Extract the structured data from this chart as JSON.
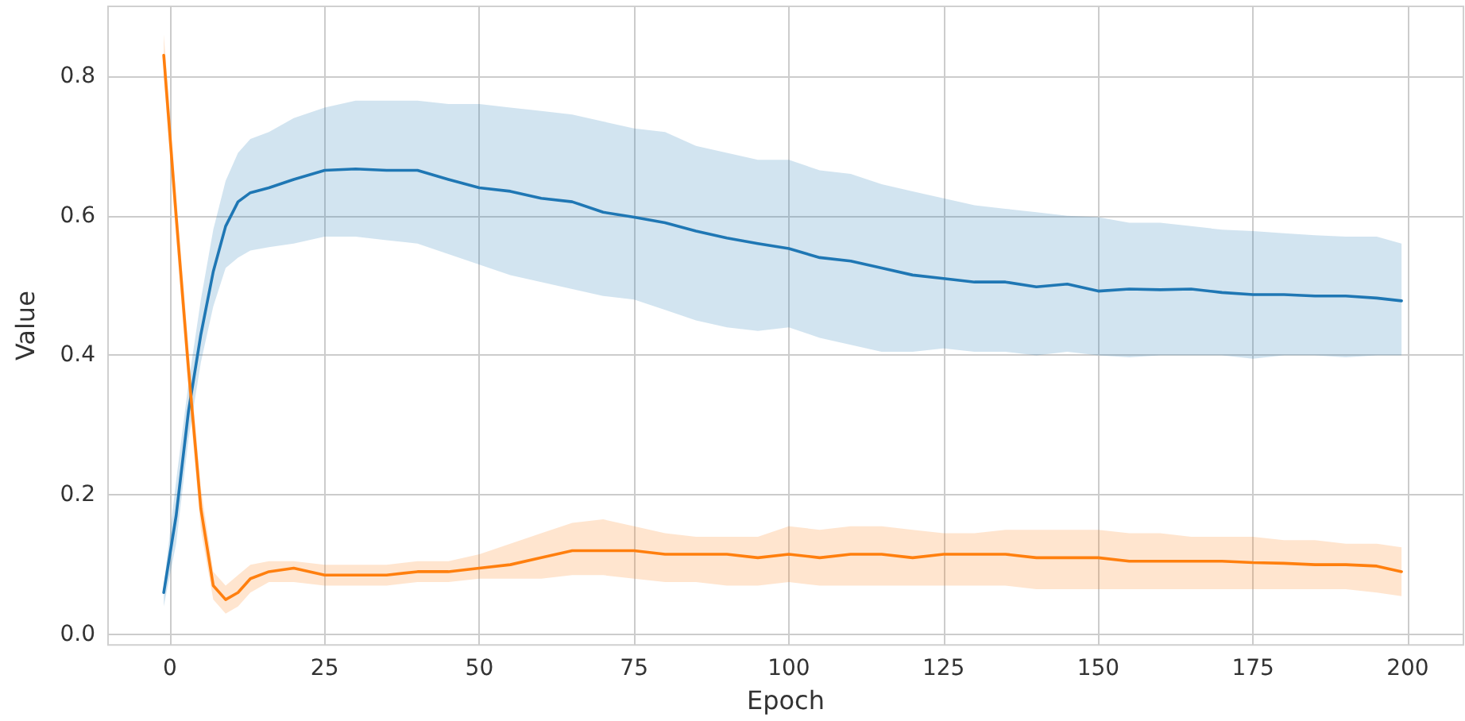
{
  "chart_data": {
    "type": "line",
    "xlabel": "Epoch",
    "ylabel": "Value",
    "x": [
      -1,
      1,
      3,
      5,
      7,
      9,
      11,
      13,
      16,
      20,
      25,
      30,
      35,
      40,
      45,
      50,
      55,
      60,
      65,
      70,
      75,
      80,
      85,
      90,
      95,
      100,
      105,
      110,
      115,
      120,
      125,
      130,
      135,
      140,
      145,
      150,
      155,
      160,
      165,
      170,
      175,
      180,
      185,
      190,
      195,
      199
    ],
    "series": [
      {
        "color": "#1f77b4",
        "values": [
          0.06,
          0.17,
          0.32,
          0.43,
          0.52,
          0.585,
          0.62,
          0.633,
          0.64,
          0.652,
          0.665,
          0.667,
          0.665,
          0.665,
          0.652,
          0.64,
          0.635,
          0.625,
          0.62,
          0.605,
          0.598,
          0.59,
          0.578,
          0.568,
          0.56,
          0.553,
          0.54,
          0.535,
          0.525,
          0.515,
          0.51,
          0.505,
          0.505,
          0.498,
          0.502,
          0.492,
          0.495,
          0.494,
          0.495,
          0.49,
          0.487,
          0.487,
          0.485,
          0.485,
          0.482,
          0.478
        ],
        "upper": [
          0.07,
          0.22,
          0.36,
          0.48,
          0.58,
          0.65,
          0.69,
          0.71,
          0.72,
          0.74,
          0.755,
          0.765,
          0.765,
          0.765,
          0.76,
          0.76,
          0.755,
          0.75,
          0.745,
          0.735,
          0.725,
          0.72,
          0.7,
          0.69,
          0.68,
          0.68,
          0.665,
          0.66,
          0.645,
          0.635,
          0.625,
          0.615,
          0.61,
          0.605,
          0.6,
          0.598,
          0.59,
          0.59,
          0.585,
          0.58,
          0.578,
          0.575,
          0.572,
          0.57,
          0.57,
          0.56
        ],
        "lower": [
          0.04,
          0.13,
          0.28,
          0.39,
          0.47,
          0.525,
          0.54,
          0.55,
          0.555,
          0.56,
          0.57,
          0.57,
          0.565,
          0.56,
          0.545,
          0.53,
          0.515,
          0.505,
          0.495,
          0.485,
          0.48,
          0.465,
          0.45,
          0.44,
          0.435,
          0.44,
          0.425,
          0.415,
          0.405,
          0.405,
          0.41,
          0.405,
          0.405,
          0.4,
          0.405,
          0.4,
          0.397,
          0.4,
          0.4,
          0.4,
          0.395,
          0.4,
          0.4,
          0.397,
          0.4,
          0.4
        ]
      },
      {
        "color": "#ff7f0e",
        "values": [
          0.83,
          0.6,
          0.38,
          0.18,
          0.07,
          0.05,
          0.06,
          0.08,
          0.09,
          0.095,
          0.085,
          0.085,
          0.085,
          0.09,
          0.09,
          0.095,
          0.1,
          0.11,
          0.12,
          0.12,
          0.12,
          0.115,
          0.115,
          0.115,
          0.11,
          0.115,
          0.11,
          0.115,
          0.115,
          0.11,
          0.115,
          0.115,
          0.115,
          0.11,
          0.11,
          0.11,
          0.105,
          0.105,
          0.105,
          0.105,
          0.103,
          0.102,
          0.1,
          0.1,
          0.098,
          0.09
        ],
        "upper": [
          0.86,
          0.63,
          0.41,
          0.21,
          0.09,
          0.07,
          0.085,
          0.1,
          0.105,
          0.105,
          0.1,
          0.1,
          0.1,
          0.105,
          0.105,
          0.115,
          0.13,
          0.145,
          0.16,
          0.165,
          0.155,
          0.145,
          0.14,
          0.14,
          0.14,
          0.155,
          0.15,
          0.155,
          0.155,
          0.15,
          0.145,
          0.145,
          0.15,
          0.15,
          0.15,
          0.15,
          0.145,
          0.145,
          0.14,
          0.14,
          0.14,
          0.135,
          0.135,
          0.13,
          0.13,
          0.125
        ],
        "lower": [
          0.8,
          0.57,
          0.35,
          0.15,
          0.05,
          0.03,
          0.04,
          0.06,
          0.075,
          0.075,
          0.07,
          0.07,
          0.07,
          0.075,
          0.075,
          0.08,
          0.08,
          0.08,
          0.085,
          0.085,
          0.08,
          0.075,
          0.075,
          0.07,
          0.07,
          0.075,
          0.07,
          0.07,
          0.07,
          0.07,
          0.07,
          0.07,
          0.07,
          0.065,
          0.065,
          0.065,
          0.065,
          0.065,
          0.065,
          0.065,
          0.065,
          0.065,
          0.065,
          0.065,
          0.06,
          0.055
        ]
      }
    ],
    "xlim": [
      -10,
      209
    ],
    "xticks": [
      0,
      25,
      50,
      75,
      100,
      125,
      150,
      175,
      200
    ],
    "ylim": [
      -0.015,
      0.9
    ],
    "yticks": [
      {
        "value": 0,
        "label": "0.0"
      },
      0.2,
      0.4,
      0.6,
      0.8
    ],
    "grid": true,
    "marker": "none",
    "line_style": "solid"
  }
}
